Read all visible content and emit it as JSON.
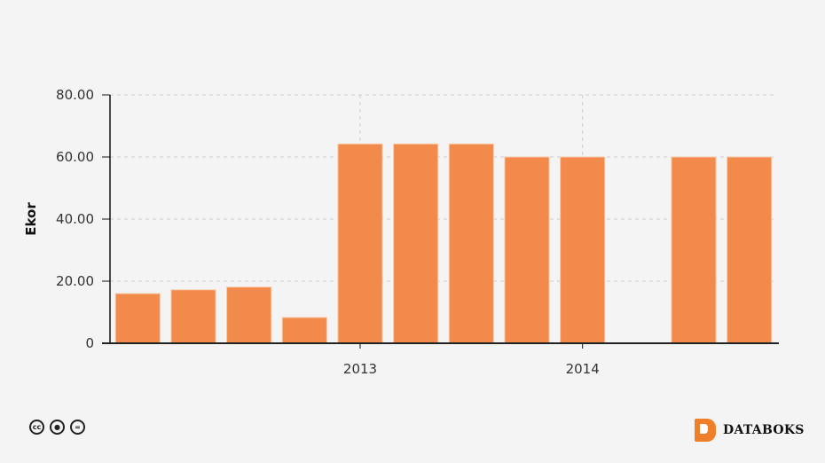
{
  "chart_data": {
    "type": "bar",
    "categories": [
      "",
      "",
      "",
      "",
      "2013",
      "",
      "",
      "",
      "2014",
      "",
      "",
      ""
    ],
    "values": [
      16,
      17.2,
      18.1,
      8.3,
      64.2,
      64.2,
      64.2,
      60,
      60,
      null,
      60,
      60
    ],
    "title": "",
    "xlabel": "",
    "ylabel": "Ekor",
    "ylim": [
      0,
      80
    ],
    "yticks": [
      "0",
      "20.00",
      "40.00",
      "60.00",
      "80.00"
    ],
    "xticks": [
      "2013",
      "2014"
    ],
    "grid": true,
    "bar_color": "#f28a4c"
  },
  "footer": {
    "license_icons": [
      "cc-icon",
      "by-icon",
      "nd-icon"
    ],
    "cc_text": "cc",
    "nd_text": "=",
    "brand": "DATABOKS",
    "brand_color": "#f07f2a"
  }
}
